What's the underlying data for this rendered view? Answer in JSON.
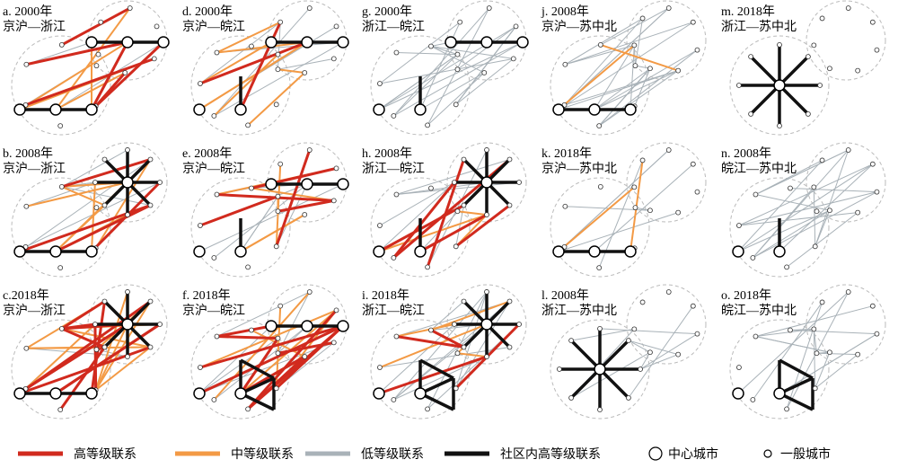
{
  "panels": [
    {
      "title": "a. 2000年",
      "subtitle": "京沪—浙江"
    },
    {
      "title": "b. 2008年",
      "subtitle": "京沪—浙江"
    },
    {
      "title": "c.2018年",
      "subtitle": "京沪—浙江"
    },
    {
      "title": "d. 2000年",
      "subtitle": "京沪—皖江"
    },
    {
      "title": "e. 2008年",
      "subtitle": "京沪—皖江"
    },
    {
      "title": "f. 2018年",
      "subtitle": "京沪—皖江"
    },
    {
      "title": "g. 2000年",
      "subtitle": "浙江—皖江"
    },
    {
      "title": "h. 2008年",
      "subtitle": "浙江—皖江"
    },
    {
      "title": "i. 2018年",
      "subtitle": "浙江—皖江"
    },
    {
      "title": "j. 2008年",
      "subtitle": "京沪—苏中北"
    },
    {
      "title": "k. 2018年",
      "subtitle": "京沪—苏中北"
    },
    {
      "title": "l. 2008年",
      "subtitle": "浙江—苏中北"
    },
    {
      "title": "m. 2018年",
      "subtitle": "浙江—苏中北"
    },
    {
      "title": "n. 2008年",
      "subtitle": "皖江—苏中北"
    },
    {
      "title": "o. 2018年",
      "subtitle": "皖江—苏中北"
    }
  ],
  "legend": [
    "高等级联系",
    "中等级联系",
    "低等级联系",
    "社区内高等级联系",
    "中心城市",
    "一般城市"
  ]
}
